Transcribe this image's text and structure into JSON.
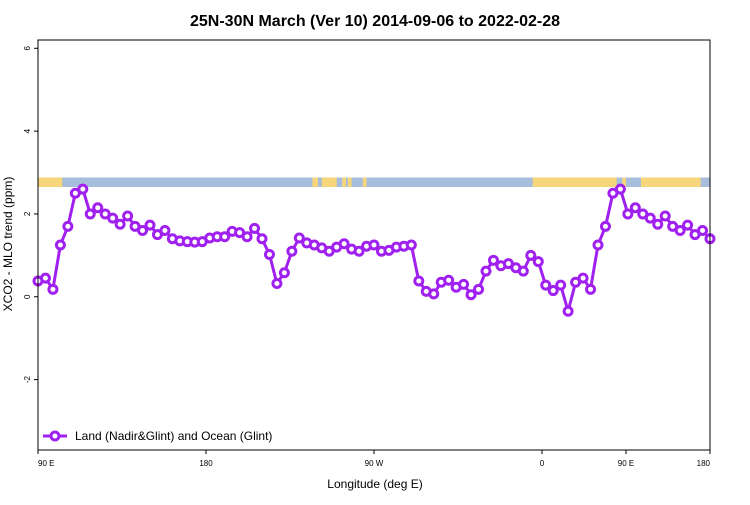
{
  "chart_data": {
    "type": "line",
    "title": "25N-30N March (Ver 10)   2014-09-06 to 2022-02-28",
    "xlabel": "Longitude (deg E)",
    "ylabel": "XCO2 - MLO trend (ppm)",
    "xlim": [
      90,
      450
    ],
    "ylim": [
      -3.7,
      6.2
    ],
    "x_ticks": [
      {
        "value": 90,
        "label": "90 E"
      },
      {
        "value": 180,
        "label": "180"
      },
      {
        "value": 270,
        "label": "90 W"
      },
      {
        "value": 360,
        "label": "0"
      },
      {
        "value": 450,
        "label": "90 E"
      }
    ],
    "x_tick_labels_right": {
      "value": 450,
      "label": "180"
    },
    "y_ticks": [
      {
        "value": -2,
        "label": "-2"
      },
      {
        "value": 0,
        "label": "0"
      },
      {
        "value": 2,
        "label": "2"
      },
      {
        "value": 4,
        "label": "4"
      },
      {
        "value": 6,
        "label": "6"
      }
    ],
    "x_axis_note": "top ticks at 90 E, 180, 90 W, 0, 90 E, 180 spaced evenly",
    "legend": {
      "position": "bottom-left",
      "label": "Land (Nadir&Glint) and Ocean (Glint)"
    },
    "series": [
      {
        "name": "Land (Nadir&Glint) and Ocean (Glint)",
        "color": "#a020f0",
        "x": [
          90,
          94,
          98,
          102,
          106,
          110,
          114,
          118,
          122,
          126,
          130,
          134,
          138,
          142,
          146,
          150,
          154,
          158,
          162,
          166,
          170,
          174,
          178,
          182,
          186,
          190,
          194,
          198,
          202,
          206,
          210,
          214,
          218,
          222,
          226,
          230,
          234,
          238,
          242,
          246,
          250,
          254,
          258,
          262,
          266,
          270,
          274,
          278,
          282,
          286,
          290,
          294,
          298,
          302,
          306,
          310,
          314,
          318,
          322,
          326,
          330,
          334,
          338,
          342,
          346,
          350,
          354,
          358,
          362,
          366,
          370,
          374,
          378,
          382,
          386,
          390,
          394,
          398,
          402,
          406,
          410,
          414,
          418,
          422,
          426,
          430,
          434,
          438,
          442,
          446,
          450
        ],
        "y": [
          0.38,
          0.45,
          0.18,
          1.25,
          1.7,
          2.5,
          2.6,
          2.0,
          2.15,
          2.0,
          1.9,
          1.75,
          1.95,
          1.7,
          1.6,
          1.73,
          1.5,
          1.6,
          1.4,
          1.35,
          1.33,
          1.32,
          1.33,
          1.42,
          1.45,
          1.45,
          1.58,
          1.55,
          1.45,
          1.65,
          1.4,
          1.02,
          0.32,
          0.58,
          1.1,
          1.42,
          1.3,
          1.25,
          1.18,
          1.1,
          1.2,
          1.28,
          1.15,
          1.1,
          1.22,
          1.25,
          1.1,
          1.12,
          1.2,
          1.22,
          1.25,
          0.38,
          0.13,
          0.07,
          0.35,
          0.4,
          0.23,
          0.3,
          0.05,
          0.18,
          0.62,
          0.88,
          0.75,
          0.8,
          0.7,
          0.62,
          1.0,
          0.85,
          0.28,
          0.15,
          0.28,
          -0.35,
          0.35,
          0.45,
          0.18,
          1.25,
          1.7,
          2.5,
          2.6,
          2.0,
          2.15,
          2.0,
          1.9,
          1.75,
          1.95,
          1.7,
          1.6,
          1.73,
          1.5,
          1.6,
          1.4
        ]
      }
    ],
    "map_strip": {
      "y_range": [
        2.65,
        2.88
      ],
      "ocean_color": "#a6bddb",
      "land_color": "#f5d67a",
      "land_spans_lon": [
        [
          90,
          103
        ],
        [
          237,
          240
        ],
        [
          242,
          250
        ],
        [
          253,
          255
        ],
        [
          256,
          258
        ],
        [
          264,
          266
        ],
        [
          355,
          400
        ],
        [
          403,
          405
        ],
        [
          420,
          413
        ],
        [
          418,
          445
        ]
      ]
    }
  }
}
